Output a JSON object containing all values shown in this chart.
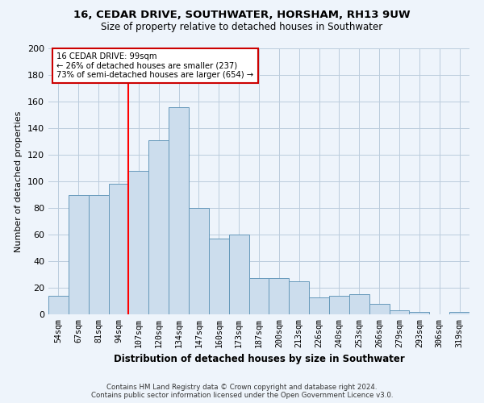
{
  "title1": "16, CEDAR DRIVE, SOUTHWATER, HORSHAM, RH13 9UW",
  "title2": "Size of property relative to detached houses in Southwater",
  "xlabel": "Distribution of detached houses by size in Southwater",
  "ylabel": "Number of detached properties",
  "bar_labels": [
    "54sqm",
    "67sqm",
    "81sqm",
    "94sqm",
    "107sqm",
    "120sqm",
    "134sqm",
    "147sqm",
    "160sqm",
    "173sqm",
    "187sqm",
    "200sqm",
    "213sqm",
    "226sqm",
    "240sqm",
    "253sqm",
    "266sqm",
    "279sqm",
    "293sqm",
    "306sqm",
    "319sqm"
  ],
  "bar_values": [
    14,
    90,
    90,
    98,
    108,
    131,
    156,
    80,
    57,
    60,
    27,
    27,
    25,
    13,
    14,
    15,
    8,
    3,
    2,
    0,
    2
  ],
  "bar_color": "#ccdded",
  "bar_edge_color": "#6699bb",
  "red_line_idx": 4,
  "red_line_label": "16 CEDAR DRIVE: 99sqm",
  "annotation_line1": "← 26% of detached houses are smaller (237)",
  "annotation_line2": "73% of semi-detached houses are larger (654) →",
  "annotation_box_color": "#ffffff",
  "annotation_box_edge": "#cc0000",
  "ylim": [
    0,
    200
  ],
  "yticks": [
    0,
    20,
    40,
    60,
    80,
    100,
    120,
    140,
    160,
    180,
    200
  ],
  "grid_color": "#bbccdd",
  "footer1": "Contains HM Land Registry data © Crown copyright and database right 2024.",
  "footer2": "Contains public sector information licensed under the Open Government Licence v3.0.",
  "bg_color": "#eef4fb"
}
